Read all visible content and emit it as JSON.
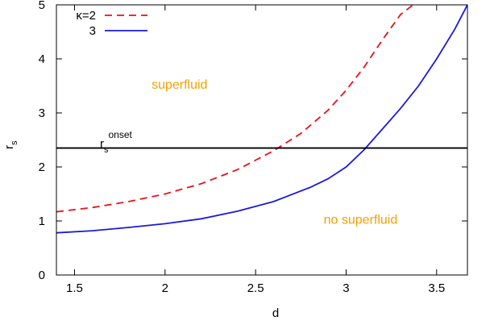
{
  "chart_data": {
    "type": "line",
    "xlabel": "d",
    "ylabel": "r",
    "ylabel_sub": "s",
    "xlim": [
      1.4,
      3.67
    ],
    "ylim": [
      0,
      5
    ],
    "xticks": [
      1.5,
      2,
      2.5,
      3,
      3.5
    ],
    "xtick_labels": [
      "1.5",
      "2",
      "2.5",
      "3",
      "3.5"
    ],
    "yticks": [
      0,
      1,
      2,
      3,
      4,
      5
    ],
    "ytick_labels": [
      "0",
      "1",
      "2",
      "3",
      "4",
      "5"
    ],
    "grid": false,
    "legend_position": "top-left",
    "series": [
      {
        "name": "κ=2",
        "color": "#e8111a",
        "dash": "dashed",
        "x": [
          1.4,
          1.6,
          1.8,
          2.0,
          2.2,
          2.4,
          2.6,
          2.75,
          2.9,
          3.0,
          3.1,
          3.2,
          3.3,
          3.37
        ],
        "y": [
          1.17,
          1.25,
          1.36,
          1.5,
          1.69,
          1.95,
          2.3,
          2.62,
          3.05,
          3.42,
          3.85,
          4.35,
          4.82,
          5.0
        ]
      },
      {
        "name": "3",
        "color": "#1a1adc",
        "dash": "solid",
        "x": [
          1.4,
          1.6,
          1.8,
          2.0,
          2.2,
          2.4,
          2.6,
          2.8,
          2.9,
          3.0,
          3.1,
          3.2,
          3.3,
          3.4,
          3.5,
          3.6,
          3.67
        ],
        "y": [
          0.78,
          0.82,
          0.88,
          0.95,
          1.04,
          1.18,
          1.36,
          1.62,
          1.78,
          2.0,
          2.32,
          2.7,
          3.08,
          3.5,
          4.0,
          4.55,
          5.0
        ]
      }
    ],
    "hline": {
      "y": 2.35,
      "color": "#000000",
      "label": "r",
      "label_sub": "s",
      "label_sup": "onset"
    },
    "annotations": [
      {
        "text": "superfluid",
        "x": 2.08,
        "y": 3.45,
        "color": "#f5a000"
      },
      {
        "text": "no superfluid",
        "x": 3.08,
        "y": 0.95,
        "color": "#f5a000"
      }
    ]
  }
}
